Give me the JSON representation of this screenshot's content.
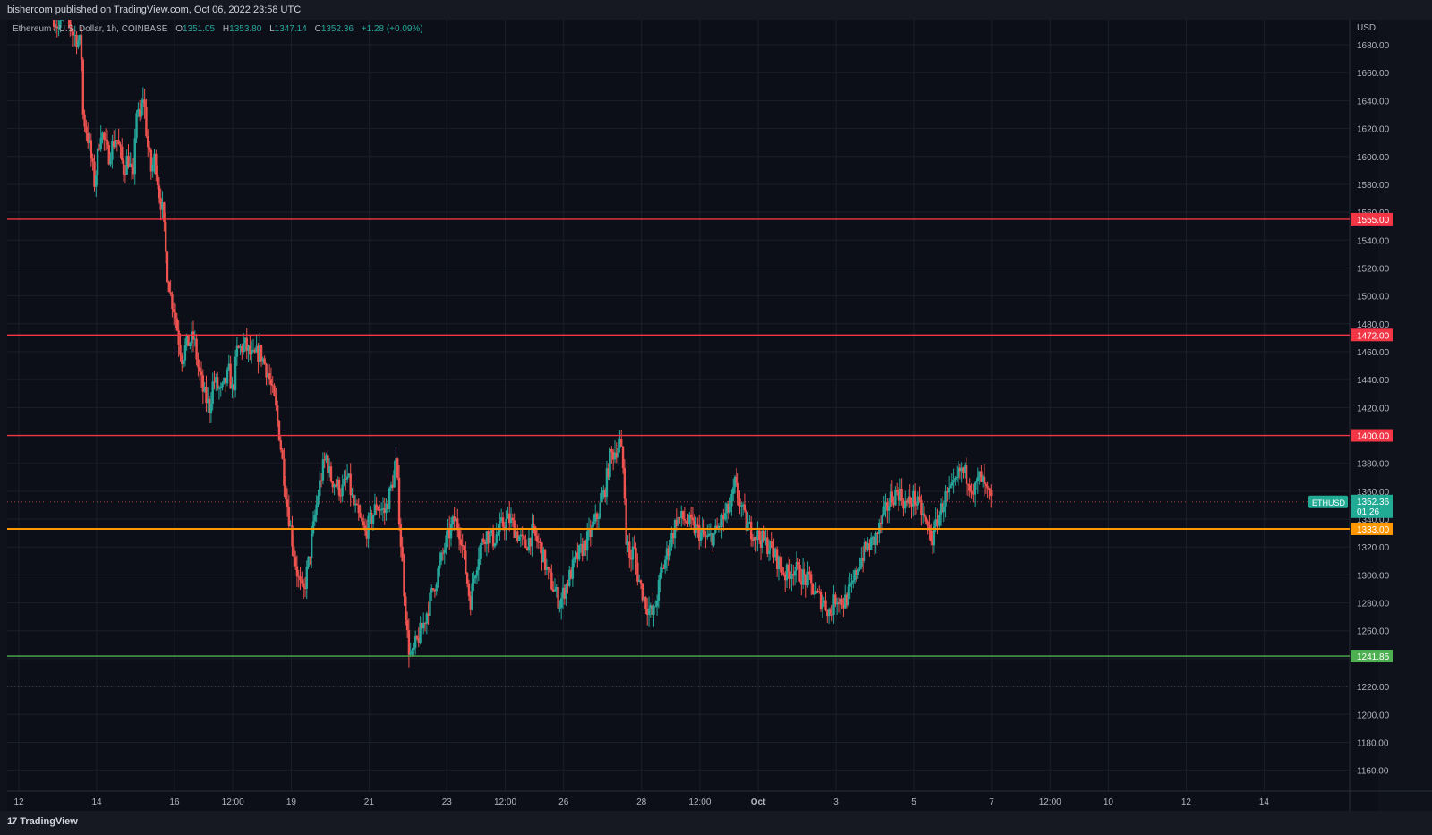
{
  "header": {
    "publish_line": "bishercom published on TradingView.com, Oct 06, 2022 23:58 UTC"
  },
  "symbol": {
    "name": "Ethereum / U.S. Dollar, 1h, COINBASE",
    "open_label": "O",
    "open": "1351.05",
    "high_label": "H",
    "high": "1353.80",
    "low_label": "L",
    "low": "1347.14",
    "close_label": "C",
    "close": "1352.36",
    "change": "+1.28 (+0.09%)"
  },
  "footer": {
    "logo_mark": "17",
    "logo_text": "TradingView"
  },
  "colors": {
    "background": "#0c0f17",
    "grid": "#1b1f2b",
    "up": "#26a69a",
    "down": "#ef5350",
    "resistance": "#f23645",
    "pivot": "#ff9800",
    "support": "#4caf50",
    "last_price": "#22ab94"
  },
  "chart_data": {
    "type": "candlestick",
    "currency_label": "USD",
    "ylim": [
      1145,
      1698
    ],
    "y_ticks": [
      1160,
      1180,
      1200,
      1220,
      1240,
      1260,
      1280,
      1300,
      1320,
      1340,
      1360,
      1380,
      1400,
      1420,
      1440,
      1460,
      1480,
      1500,
      1520,
      1540,
      1560,
      1580,
      1600,
      1620,
      1640,
      1660,
      1680
    ],
    "y_tick_labels": [
      "1160.00",
      "1180.00",
      "1200.00",
      "1220.00",
      "1240.00",
      "1260.00",
      "1280.00",
      "1300.00",
      "1320.00",
      "1340.00",
      "1360.00",
      "1380.00",
      "1400.00",
      "1420.00",
      "1440.00",
      "1460.00",
      "1480.00",
      "1500.00",
      "1520.00",
      "1540.00",
      "1560.00",
      "1580.00",
      "1600.00",
      "1620.00",
      "1640.00",
      "1660.00",
      "1680.00"
    ],
    "x_unit": "days since Sep 12, 2022 00:00 UTC",
    "x_range": [
      -0.3,
      34.2
    ],
    "x_ticks": [
      {
        "x": 0,
        "label": "12"
      },
      {
        "x": 2,
        "label": "14"
      },
      {
        "x": 4,
        "label": "16"
      },
      {
        "x": 5.5,
        "label": "12:00"
      },
      {
        "x": 7,
        "label": "19"
      },
      {
        "x": 9,
        "label": "21"
      },
      {
        "x": 11,
        "label": "23"
      },
      {
        "x": 12.5,
        "label": "12:00"
      },
      {
        "x": 14,
        "label": "26"
      },
      {
        "x": 16,
        "label": "28"
      },
      {
        "x": 17.5,
        "label": "12:00"
      },
      {
        "x": 19,
        "label": "Oct"
      },
      {
        "x": 21,
        "label": "3"
      },
      {
        "x": 23,
        "label": "5"
      },
      {
        "x": 25,
        "label": "7"
      },
      {
        "x": 26.5,
        "label": "12:00"
      },
      {
        "x": 28,
        "label": "10"
      },
      {
        "x": 30,
        "label": "12"
      },
      {
        "x": 32,
        "label": "14"
      }
    ],
    "horizontal_levels": [
      {
        "price": 1555.0,
        "label": "1555.00",
        "color": "#f23645"
      },
      {
        "price": 1472.0,
        "label": "1472.00",
        "color": "#f23645"
      },
      {
        "price": 1400.0,
        "label": "1400.00",
        "color": "#f23645"
      },
      {
        "price": 1333.0,
        "label": "1333.00",
        "color": "#ff9800"
      },
      {
        "price": 1241.85,
        "label": "1241.85",
        "color": "#4caf50"
      }
    ],
    "dotted_levels": [
      {
        "price": 1220.0
      }
    ],
    "last_price": {
      "price": 1352.36,
      "label": "1352.36",
      "countdown": "01:26",
      "symbol_tag": "ETHUSD"
    },
    "price_path": [
      [
        0.9,
        1700
      ],
      [
        1.05,
        1690
      ],
      [
        1.15,
        1710
      ],
      [
        1.4,
        1688
      ],
      [
        1.6,
        1680
      ],
      [
        1.65,
        1630
      ],
      [
        1.8,
        1610
      ],
      [
        1.95,
        1580
      ],
      [
        2.1,
        1620
      ],
      [
        2.3,
        1600
      ],
      [
        2.5,
        1615
      ],
      [
        2.7,
        1590
      ],
      [
        2.8,
        1600
      ],
      [
        2.95,
        1580
      ],
      [
        3.0,
        1635
      ],
      [
        3.1,
        1625
      ],
      [
        3.2,
        1645
      ],
      [
        3.3,
        1610
      ],
      [
        3.4,
        1590
      ],
      [
        3.5,
        1600
      ],
      [
        3.6,
        1575
      ],
      [
        3.7,
        1560
      ],
      [
        3.8,
        1520
      ],
      [
        3.9,
        1500
      ],
      [
        4.0,
        1490
      ],
      [
        4.1,
        1470
      ],
      [
        4.2,
        1455
      ],
      [
        4.3,
        1465
      ],
      [
        4.5,
        1470
      ],
      [
        4.6,
        1450
      ],
      [
        4.75,
        1430
      ],
      [
        4.9,
        1420
      ],
      [
        5.0,
        1440
      ],
      [
        5.2,
        1430
      ],
      [
        5.4,
        1445
      ],
      [
        5.5,
        1430
      ],
      [
        5.6,
        1460
      ],
      [
        5.8,
        1465
      ],
      [
        6.0,
        1455
      ],
      [
        6.2,
        1460
      ],
      [
        6.4,
        1445
      ],
      [
        6.6,
        1420
      ],
      [
        6.7,
        1400
      ],
      [
        6.8,
        1375
      ],
      [
        6.9,
        1350
      ],
      [
        7.0,
        1330
      ],
      [
        7.1,
        1310
      ],
      [
        7.2,
        1295
      ],
      [
        7.3,
        1285
      ],
      [
        7.45,
        1310
      ],
      [
        7.6,
        1340
      ],
      [
        7.7,
        1360
      ],
      [
        7.8,
        1375
      ],
      [
        7.9,
        1385
      ],
      [
        8.0,
        1370
      ],
      [
        8.15,
        1365
      ],
      [
        8.3,
        1360
      ],
      [
        8.45,
        1370
      ],
      [
        8.6,
        1350
      ],
      [
        8.75,
        1340
      ],
      [
        8.9,
        1330
      ],
      [
        9.05,
        1340
      ],
      [
        9.2,
        1350
      ],
      [
        9.4,
        1345
      ],
      [
        9.55,
        1360
      ],
      [
        9.7,
        1380
      ],
      [
        9.8,
        1330
      ],
      [
        9.9,
        1290
      ],
      [
        10.0,
        1250
      ],
      [
        10.1,
        1240
      ],
      [
        10.2,
        1250
      ],
      [
        10.4,
        1265
      ],
      [
        10.6,
        1285
      ],
      [
        10.8,
        1305
      ],
      [
        11.0,
        1325
      ],
      [
        11.2,
        1340
      ],
      [
        11.35,
        1330
      ],
      [
        11.5,
        1300
      ],
      [
        11.6,
        1280
      ],
      [
        11.7,
        1300
      ],
      [
        11.85,
        1320
      ],
      [
        12.0,
        1330
      ],
      [
        12.2,
        1325
      ],
      [
        12.4,
        1335
      ],
      [
        12.6,
        1340
      ],
      [
        12.8,
        1330
      ],
      [
        13.0,
        1320
      ],
      [
        13.2,
        1330
      ],
      [
        13.4,
        1320
      ],
      [
        13.6,
        1300
      ],
      [
        13.75,
        1290
      ],
      [
        13.9,
        1280
      ],
      [
        14.1,
        1295
      ],
      [
        14.3,
        1310
      ],
      [
        14.5,
        1320
      ],
      [
        14.7,
        1330
      ],
      [
        14.9,
        1345
      ],
      [
        15.05,
        1360
      ],
      [
        15.2,
        1385
      ],
      [
        15.35,
        1390
      ],
      [
        15.45,
        1395
      ],
      [
        15.55,
        1370
      ],
      [
        15.6,
        1330
      ],
      [
        15.7,
        1310
      ],
      [
        15.8,
        1320
      ],
      [
        15.9,
        1300
      ],
      [
        16.1,
        1280
      ],
      [
        16.3,
        1270
      ],
      [
        16.5,
        1300
      ],
      [
        16.7,
        1320
      ],
      [
        16.9,
        1340
      ],
      [
        17.1,
        1340
      ],
      [
        17.3,
        1335
      ],
      [
        17.5,
        1330
      ],
      [
        17.7,
        1325
      ],
      [
        17.9,
        1330
      ],
      [
        18.1,
        1340
      ],
      [
        18.3,
        1350
      ],
      [
        18.4,
        1365
      ],
      [
        18.55,
        1350
      ],
      [
        18.7,
        1335
      ],
      [
        18.9,
        1330
      ],
      [
        19.1,
        1325
      ],
      [
        19.3,
        1320
      ],
      [
        19.5,
        1310
      ],
      [
        19.7,
        1300
      ],
      [
        19.9,
        1305
      ],
      [
        20.1,
        1300
      ],
      [
        20.3,
        1295
      ],
      [
        20.5,
        1285
      ],
      [
        20.7,
        1280
      ],
      [
        20.85,
        1272
      ],
      [
        21.0,
        1285
      ],
      [
        21.2,
        1280
      ],
      [
        21.4,
        1290
      ],
      [
        21.6,
        1310
      ],
      [
        21.8,
        1320
      ],
      [
        22.0,
        1325
      ],
      [
        22.2,
        1340
      ],
      [
        22.4,
        1355
      ],
      [
        22.6,
        1360
      ],
      [
        22.8,
        1350
      ],
      [
        23.0,
        1355
      ],
      [
        23.2,
        1345
      ],
      [
        23.4,
        1330
      ],
      [
        23.5,
        1325
      ],
      [
        23.6,
        1340
      ],
      [
        23.8,
        1355
      ],
      [
        24.0,
        1360
      ],
      [
        24.2,
        1375
      ],
      [
        24.4,
        1370
      ],
      [
        24.55,
        1360
      ],
      [
        24.7,
        1370
      ],
      [
        24.85,
        1360
      ],
      [
        25.0,
        1352
      ]
    ]
  }
}
